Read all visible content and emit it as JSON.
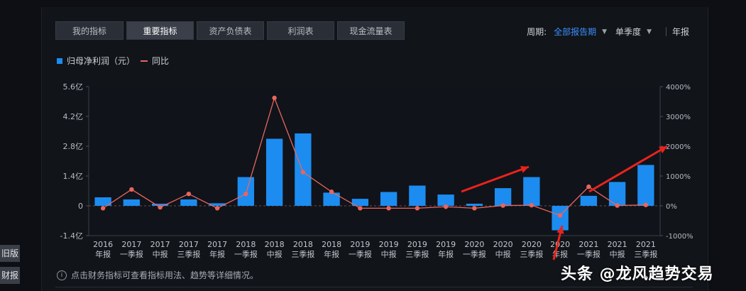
{
  "tabs": [
    "我的指标",
    "重要指标",
    "资产负债表",
    "利润表",
    "现金流量表"
  ],
  "active_tab": 1,
  "period": {
    "label": "周期:",
    "selected": "全部报告期",
    "option1": "单季度",
    "option2": "年报"
  },
  "legend": {
    "bar": "归母净利润（元）",
    "line": "同比"
  },
  "colors": {
    "bar": "#1c8cf0",
    "line": "#e8665e",
    "zero": "#6b4a4a"
  },
  "chart_data": {
    "type": "bar",
    "categories": [
      [
        "2016",
        "年报"
      ],
      [
        "2017",
        "一季报"
      ],
      [
        "2017",
        "中报"
      ],
      [
        "2017",
        "三季报"
      ],
      [
        "2017",
        "年报"
      ],
      [
        "2018",
        "一季报"
      ],
      [
        "2018",
        "中报"
      ],
      [
        "2018",
        "三季报"
      ],
      [
        "2018",
        "年报"
      ],
      [
        "2019",
        "一季报"
      ],
      [
        "2019",
        "中报"
      ],
      [
        "2019",
        "三季报"
      ],
      [
        "2019",
        "年报"
      ],
      [
        "2020",
        "一季报"
      ],
      [
        "2020",
        "中报"
      ],
      [
        "2020",
        "三季报"
      ],
      [
        "2020",
        "年报"
      ],
      [
        "2021",
        "一季报"
      ],
      [
        "2021",
        "中报"
      ],
      [
        "2021",
        "三季报"
      ]
    ],
    "series": [
      {
        "name": "归母净利润（元）",
        "axis": "left",
        "unit": "亿",
        "values": [
          0.4,
          0.3,
          0.1,
          0.3,
          0.12,
          1.35,
          3.15,
          3.4,
          0.62,
          0.33,
          0.65,
          0.95,
          0.53,
          0.1,
          0.83,
          1.35,
          -1.15,
          0.47,
          1.12,
          1.92
        ]
      },
      {
        "name": "同比",
        "axis": "right",
        "unit": "%",
        "values": [
          -80,
          550,
          -50,
          400,
          -80,
          400,
          3620,
          1130,
          470,
          -80,
          -80,
          -80,
          -30,
          -80,
          10,
          20,
          -320,
          640,
          10,
          30
        ]
      }
    ],
    "y_left": {
      "ticks": [
        "5.6亿",
        "4.2亿",
        "2.8亿",
        "1.4亿",
        "0",
        "-1.4亿"
      ],
      "ylim": [
        -1.4,
        5.6
      ]
    },
    "y_right": {
      "ticks": [
        "4000%",
        "3000%",
        "2000%",
        "1000%",
        "0%",
        "-1000%"
      ],
      "ylim": [
        -1000,
        4000
      ]
    }
  },
  "note": {
    "icon": "i",
    "text": "点击财务指标可查看指标用法、趋势等详细情况。"
  },
  "side": [
    "旧版",
    "财报"
  ],
  "watermark": "头条 @龙风趋势交易"
}
